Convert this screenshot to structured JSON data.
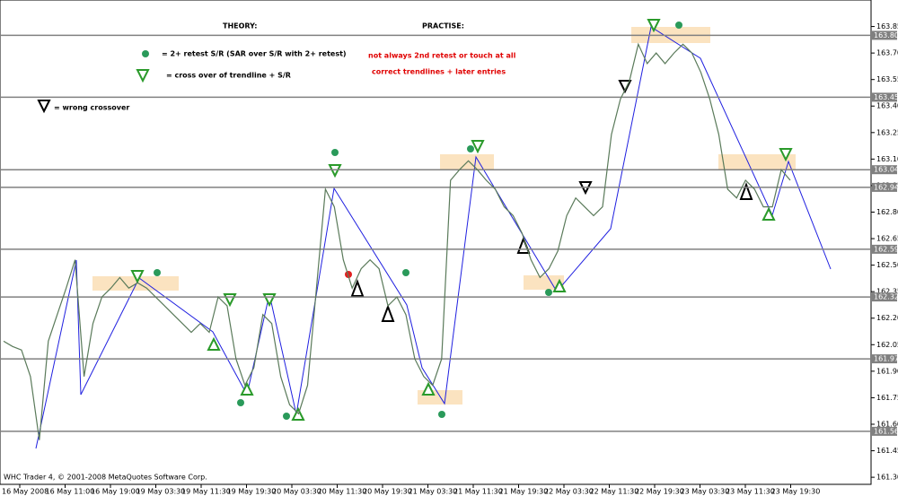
{
  "chart_data": {
    "type": "line",
    "annotations": {
      "theory": "THEORY:",
      "practise": "PRACTISE:",
      "retest": "= 2+ retest S/R (SAR over S/R with 2+ retest)",
      "crossover": "= cross over of trendline + S/R",
      "wrong": "= wrong crossover",
      "not_always": "not always 2nd retest or touch at all",
      "correct": "correct trendlines + later entries",
      "copyright": "WHC Trader 4, © 2001-2008 MetaQuotes Software Corp."
    },
    "time_labels": [
      "16 May 2008",
      "16 May 11:00",
      "16 May 19:00",
      "19 May 03:30",
      "19 May 11:30",
      "19 May 19:30",
      "20 May 03:30",
      "20 May 11:30",
      "20 May 19:30",
      "21 May 03:30",
      "21 May 11:30",
      "21 May 19:30",
      "22 May 03:30",
      "22 May 11:30",
      "22 May 19:30",
      "23 May 03:30",
      "23 May 11:30",
      "23 May 19:30"
    ],
    "series": [
      {
        "color": "#5a7a5a",
        "values": [
          162.07,
          162.04,
          162.02,
          161.87,
          161.51,
          162.07,
          162.22,
          162.37,
          162.53,
          161.87,
          162.17,
          162.32,
          162.37,
          162.43,
          162.37,
          162.4,
          162.37,
          162.32,
          162.27,
          162.22,
          162.17,
          162.12,
          162.17,
          162.12,
          162.32,
          162.27,
          161.97,
          161.82,
          161.92,
          162.22,
          162.17,
          161.87,
          161.71,
          161.66,
          161.82,
          162.37,
          162.93,
          162.83,
          162.53,
          162.37,
          162.48,
          162.53,
          162.48,
          162.27,
          162.32,
          162.22,
          161.97,
          161.87,
          161.82,
          161.97,
          162.98,
          163.04,
          163.09,
          163.04,
          162.98,
          162.93,
          162.83,
          162.78,
          162.68,
          162.53,
          162.43,
          162.48,
          162.58,
          162.78,
          162.88,
          162.83,
          162.78,
          162.83,
          163.24,
          163.44,
          163.54,
          163.75,
          163.64,
          163.7,
          163.64,
          163.7,
          163.75,
          163.7,
          163.59,
          163.44,
          163.24,
          162.93,
          162.88,
          162.98,
          162.93,
          162.83,
          162.83,
          163.04,
          162.98
        ]
      }
    ],
    "levels": [
      {
        "value": 163.8,
        "label": "163.80"
      },
      {
        "value": 163.45,
        "label": "163.45"
      },
      {
        "value": 163.04,
        "label": "163.04"
      },
      {
        "value": 162.94,
        "label": "162.94"
      },
      {
        "value": 162.59,
        "label": "162.59"
      },
      {
        "value": 162.32,
        "label": "162.32"
      },
      {
        "value": 161.97,
        "label": "161.97"
      },
      {
        "value": 161.56,
        "label": "161.56"
      }
    ],
    "ylim": [
      161.26,
      164.0
    ],
    "yticks": [
      163.85,
      {
        "value": 163.7,
        "label": "163.70"
      },
      163.55,
      {
        "value": 163.4,
        "label": "163.40"
      },
      163.25,
      {
        "value": 163.1,
        "label": "163.10"
      },
      162.95,
      {
        "value": 162.8,
        "label": "162.80"
      },
      162.65,
      {
        "value": 162.5,
        "label": "162.50"
      },
      162.35,
      {
        "value": 162.2,
        "label": "162.20"
      },
      162.05,
      {
        "value": 161.9,
        "label": "161.90"
      },
      161.75,
      {
        "value": 161.6,
        "label": "161.60"
      },
      161.45,
      {
        "value": 161.3,
        "label": "161.30"
      }
    ]
  }
}
